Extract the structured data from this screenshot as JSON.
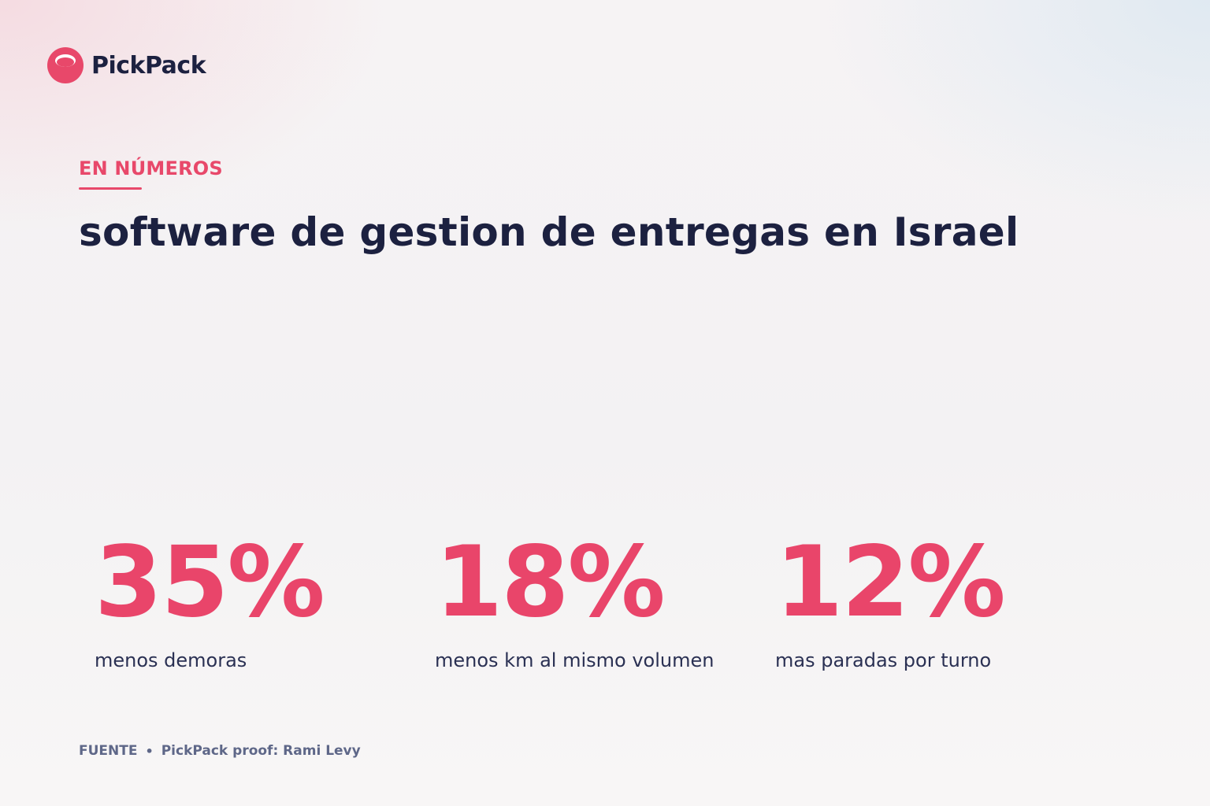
{
  "brand": {
    "name": "PickPack",
    "icon": "pickpack-logo-icon"
  },
  "section": {
    "eyebrow": "EN NÚMEROS",
    "headline": "software de gestion de entregas en Israel"
  },
  "stats": [
    {
      "value": "35%",
      "label": "menos demoras"
    },
    {
      "value": "18%",
      "label": "menos km al mismo volumen"
    },
    {
      "value": "12%",
      "label": "mas paradas por turno"
    }
  ],
  "source": {
    "label": "FUENTE",
    "separator": "•",
    "text": "PickPack proof: Rami Levy"
  },
  "colors": {
    "accent": "#e9456a",
    "heading": "#1c2140",
    "body": "#2a3053",
    "muted": "#5e6788"
  }
}
